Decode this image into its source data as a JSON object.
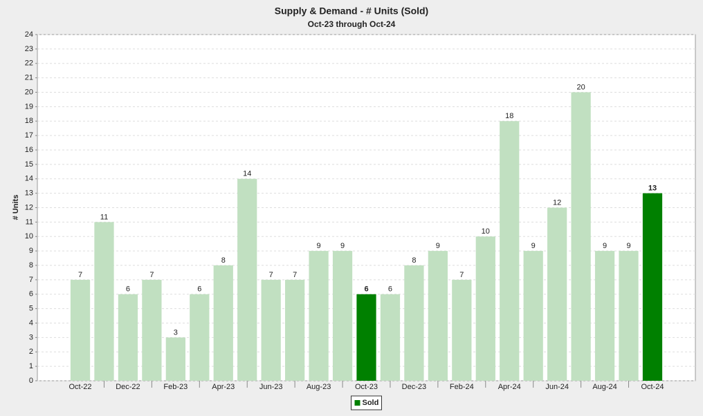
{
  "chart_data": {
    "type": "bar",
    "title": "Supply & Demand - # Units (Sold)",
    "subtitle": "Oct-23 through Oct-24",
    "y_label": "# Units",
    "categories": [
      "Oct-22",
      null,
      "Dec-22",
      null,
      "Feb-23",
      null,
      "Apr-23",
      null,
      "Jun-23",
      null,
      "Aug-23",
      null,
      "Oct-23",
      null,
      "Dec-23",
      null,
      "Feb-24",
      null,
      "Apr-24",
      null,
      "Jun-24",
      null,
      "Aug-24",
      null,
      "Oct-24"
    ],
    "series": [
      {
        "name": "Sold",
        "color": "#008000",
        "values": [
          7,
          11,
          6,
          7,
          3,
          6,
          8,
          14,
          7,
          7,
          9,
          9,
          6,
          6,
          8,
          9,
          7,
          10,
          18,
          9,
          12,
          20,
          9,
          9,
          13
        ],
        "colors": [
          "#c1e0c1",
          "#c1e0c1",
          "#c1e0c1",
          "#c1e0c1",
          "#c1e0c1",
          "#c1e0c1",
          "#c1e0c1",
          "#c1e0c1",
          "#c1e0c1",
          "#c1e0c1",
          "#c1e0c1",
          "#c1e0c1",
          "#008000",
          "#c1e0c1",
          "#c1e0c1",
          "#c1e0c1",
          "#c1e0c1",
          "#c1e0c1",
          "#c1e0c1",
          "#c1e0c1",
          "#c1e0c1",
          "#c1e0c1",
          "#c1e0c1",
          "#c1e0c1",
          "#008000"
        ]
      }
    ],
    "ylim": [
      0,
      24
    ],
    "yticks": [
      0,
      1,
      2,
      3,
      4,
      5,
      6,
      7,
      8,
      9,
      10,
      11,
      12,
      13,
      14,
      15,
      16,
      17,
      18,
      19,
      20,
      21,
      22,
      23,
      24
    ],
    "grid": true,
    "legend": "bottom"
  }
}
